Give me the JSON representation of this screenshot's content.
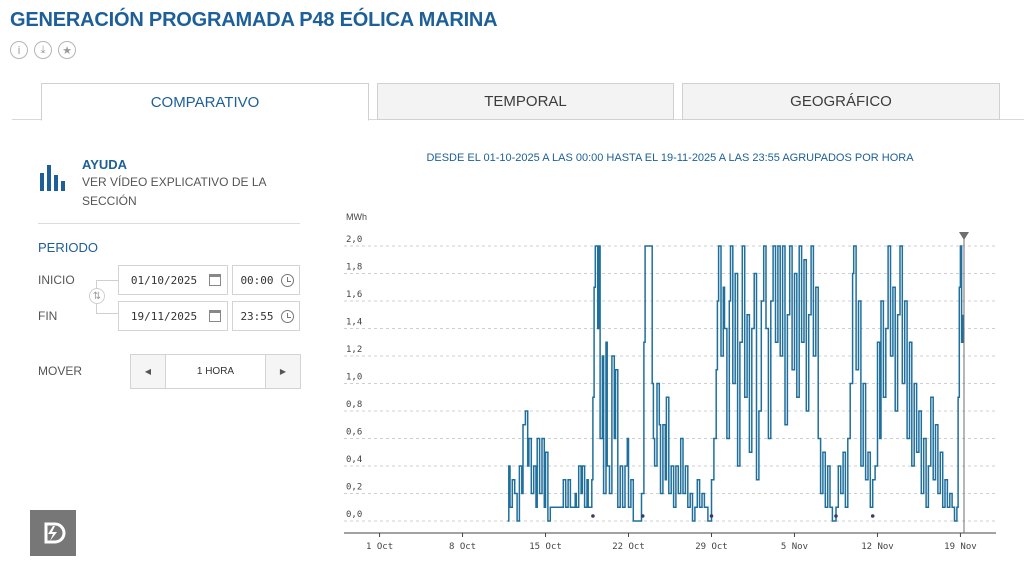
{
  "page": {
    "title": "GENERACIÓN PROGRAMADA P48 EÓLICA MARINA"
  },
  "icons": {
    "info": "info-icon",
    "download": "download-icon",
    "favorite": "star-icon"
  },
  "tabs": [
    {
      "label": "COMPARATIVO",
      "active": true
    },
    {
      "label": "TEMPORAL",
      "active": false
    },
    {
      "label": "GEOGRÁFICO",
      "active": false
    }
  ],
  "help": {
    "title": "AYUDA",
    "text": "VER VÍDEO EXPLICATIVO DE LA SECCIÓN"
  },
  "period": {
    "title": "PERIODO",
    "start_label": "INICIO",
    "start_date": "01/10/2025",
    "start_time": "00:00",
    "end_label": "FIN",
    "end_date": "19/11/2025",
    "end_time": "23:55"
  },
  "mover": {
    "label": "MOVER",
    "value": "1 HORA",
    "prev": "◀",
    "next": "▶"
  },
  "colors": {
    "brand": "#1d5f98",
    "series": "#1f6f9c"
  },
  "chart_data": {
    "type": "line",
    "subtitle": "DESDE EL 01-10-2025 A LAS 00:00 HASTA EL 19-11-2025 A LAS 23:55 AGRUPADOS POR HORA",
    "ylabel": "MWh",
    "ylim": [
      0,
      2.0
    ],
    "yticks": [
      "0,0",
      "0,2",
      "0,4",
      "0,6",
      "0,8",
      "1,0",
      "1,2",
      "1,4",
      "1,6",
      "1,8",
      "2,0"
    ],
    "xlim_days": [
      -3,
      52
    ],
    "xticks": [
      {
        "day": 0,
        "label": "1 Oct"
      },
      {
        "day": 7,
        "label": "8 Oct"
      },
      {
        "day": 14,
        "label": "15 Oct"
      },
      {
        "day": 21,
        "label": "22 Oct"
      },
      {
        "day": 28,
        "label": "29 Oct"
      },
      {
        "day": 35,
        "label": "5 Nov"
      },
      {
        "day": 42,
        "label": "12 Nov"
      },
      {
        "day": 49,
        "label": "19 Nov"
      }
    ],
    "grid": true,
    "cursor_day": 49.3,
    "zero_markers_days": [
      18.0,
      22.2,
      28.0,
      38.5,
      41.6
    ],
    "series": [
      {
        "values": [
          [
            10.8,
            0.0
          ],
          [
            10.9,
            0.4
          ],
          [
            11.0,
            0.1
          ],
          [
            11.2,
            0.3
          ],
          [
            11.4,
            0.2
          ],
          [
            11.6,
            0.0
          ],
          [
            11.8,
            0.4
          ],
          [
            12.0,
            0.2
          ],
          [
            12.1,
            0.7
          ],
          [
            12.3,
            0.8
          ],
          [
            12.5,
            0.4
          ],
          [
            12.6,
            0.6
          ],
          [
            12.8,
            0.2
          ],
          [
            13.0,
            0.4
          ],
          [
            13.2,
            0.1
          ],
          [
            13.3,
            0.6
          ],
          [
            13.5,
            0.2
          ],
          [
            13.7,
            0.6
          ],
          [
            13.9,
            0.1
          ],
          [
            14.0,
            0.5
          ],
          [
            14.2,
            0.0
          ],
          [
            14.4,
            0.1
          ],
          [
            15.4,
            0.1
          ],
          [
            15.5,
            0.3
          ],
          [
            15.7,
            0.1
          ],
          [
            15.9,
            0.3
          ],
          [
            16.1,
            0.1
          ],
          [
            16.3,
            0.1
          ],
          [
            16.5,
            0.2
          ],
          [
            16.6,
            0.1
          ],
          [
            16.8,
            0.4
          ],
          [
            17.0,
            0.2
          ],
          [
            17.1,
            0.4
          ],
          [
            17.3,
            0.1
          ],
          [
            17.5,
            0.3
          ],
          [
            17.6,
            0.1
          ],
          [
            17.9,
            0.3
          ],
          [
            18.0,
            0.9
          ],
          [
            18.1,
            1.7
          ],
          [
            18.2,
            2.0
          ],
          [
            18.4,
            1.4
          ],
          [
            18.5,
            2.0
          ],
          [
            18.6,
            0.6
          ],
          [
            18.8,
            1.2
          ],
          [
            18.9,
            0.2
          ],
          [
            19.1,
            1.3
          ],
          [
            19.2,
            0.4
          ],
          [
            19.4,
            0.2
          ],
          [
            19.6,
            1.2
          ],
          [
            19.8,
            0.6
          ],
          [
            19.9,
            1.1
          ],
          [
            20.1,
            0.1
          ],
          [
            20.3,
            0.4
          ],
          [
            20.5,
            0.1
          ],
          [
            20.7,
            0.4
          ],
          [
            20.9,
            0.6
          ],
          [
            21.0,
            0.1
          ],
          [
            21.2,
            0.3
          ],
          [
            21.4,
            0.0
          ],
          [
            22.0,
            0.0
          ],
          [
            22.1,
            0.2
          ],
          [
            22.3,
            1.3
          ],
          [
            22.4,
            2.0
          ],
          [
            22.7,
            2.0
          ],
          [
            22.9,
            2.0
          ],
          [
            23.0,
            1.0
          ],
          [
            23.1,
            0.6
          ],
          [
            23.2,
            0.4
          ],
          [
            23.4,
            1.0
          ],
          [
            23.6,
            0.7
          ],
          [
            23.7,
            0.2
          ],
          [
            23.9,
            0.7
          ],
          [
            24.1,
            0.3
          ],
          [
            24.2,
            0.9
          ],
          [
            24.4,
            0.2
          ],
          [
            24.6,
            0.4
          ],
          [
            24.8,
            0.1
          ],
          [
            25.0,
            0.4
          ],
          [
            25.2,
            0.2
          ],
          [
            25.4,
            0.6
          ],
          [
            25.6,
            0.2
          ],
          [
            25.8,
            0.4
          ],
          [
            26.0,
            0.1
          ],
          [
            26.2,
            0.2
          ],
          [
            26.4,
            0.0
          ],
          [
            26.6,
            0.1
          ],
          [
            26.8,
            0.3
          ],
          [
            27.0,
            0.1
          ],
          [
            27.2,
            0.2
          ],
          [
            27.4,
            0.1
          ],
          [
            27.7,
            0.0
          ],
          [
            28.0,
            0.3
          ],
          [
            28.2,
            0.6
          ],
          [
            28.4,
            1.1
          ],
          [
            28.5,
            1.6
          ],
          [
            28.6,
            2.0
          ],
          [
            28.8,
            1.2
          ],
          [
            29.0,
            1.7
          ],
          [
            29.1,
            1.4
          ],
          [
            29.3,
            0.6
          ],
          [
            29.5,
            1.6
          ],
          [
            29.6,
            2.0
          ],
          [
            29.8,
            1.0
          ],
          [
            30.0,
            1.8
          ],
          [
            30.2,
            0.4
          ],
          [
            30.4,
            1.3
          ],
          [
            30.6,
            2.0
          ],
          [
            30.8,
            0.9
          ],
          [
            31.0,
            1.5
          ],
          [
            31.2,
            0.5
          ],
          [
            31.4,
            1.4
          ],
          [
            31.6,
            1.8
          ],
          [
            31.8,
            0.3
          ],
          [
            32.0,
            0.8
          ],
          [
            32.2,
            1.6
          ],
          [
            32.4,
            2.0
          ],
          [
            32.6,
            1.4
          ],
          [
            32.8,
            0.6
          ],
          [
            33.0,
            1.6
          ],
          [
            33.2,
            2.0
          ],
          [
            33.4,
            1.3
          ],
          [
            33.6,
            2.0
          ],
          [
            33.8,
            1.2
          ],
          [
            34.0,
            2.0
          ],
          [
            34.2,
            0.7
          ],
          [
            34.4,
            1.5
          ],
          [
            34.6,
            2.0
          ],
          [
            34.8,
            1.1
          ],
          [
            35.0,
            1.8
          ],
          [
            35.2,
            0.9
          ],
          [
            35.4,
            2.0
          ],
          [
            35.6,
            1.3
          ],
          [
            35.8,
            1.9
          ],
          [
            36.0,
            0.8
          ],
          [
            36.2,
            1.5
          ],
          [
            36.4,
            2.0
          ],
          [
            36.6,
            1.2
          ],
          [
            36.8,
            1.7
          ],
          [
            37.0,
            0.6
          ],
          [
            37.2,
            0.2
          ],
          [
            37.4,
            0.5
          ],
          [
            37.6,
            0.1
          ],
          [
            37.8,
            0.4
          ],
          [
            38.0,
            0.1
          ],
          [
            38.2,
            0.0
          ],
          [
            38.5,
            0.1
          ],
          [
            38.7,
            0.4
          ],
          [
            38.9,
            0.2
          ],
          [
            39.1,
            0.5
          ],
          [
            39.3,
            0.1
          ],
          [
            39.5,
            0.6
          ],
          [
            39.7,
            1.0
          ],
          [
            39.9,
            1.8
          ],
          [
            40.0,
            2.0
          ],
          [
            40.2,
            1.1
          ],
          [
            40.4,
            1.6
          ],
          [
            40.6,
            0.4
          ],
          [
            40.8,
            1.0
          ],
          [
            41.0,
            0.3
          ],
          [
            41.2,
            0.5
          ],
          [
            41.4,
            0.1
          ],
          [
            41.6,
            0.3
          ],
          [
            41.8,
            0.4
          ],
          [
            42.0,
            1.3
          ],
          [
            42.2,
            0.6
          ],
          [
            42.3,
            1.6
          ],
          [
            42.5,
            0.9
          ],
          [
            42.7,
            1.4
          ],
          [
            42.9,
            2.0
          ],
          [
            43.1,
            1.2
          ],
          [
            43.3,
            1.7
          ],
          [
            43.5,
            0.8
          ],
          [
            43.7,
            1.5
          ],
          [
            43.9,
            2.0
          ],
          [
            44.1,
            1.0
          ],
          [
            44.3,
            1.6
          ],
          [
            44.5,
            0.6
          ],
          [
            44.7,
            1.3
          ],
          [
            44.9,
            0.4
          ],
          [
            45.1,
            1.0
          ],
          [
            45.3,
            0.5
          ],
          [
            45.5,
            0.8
          ],
          [
            45.7,
            0.2
          ],
          [
            45.9,
            0.6
          ],
          [
            46.1,
            0.1
          ],
          [
            46.3,
            0.4
          ],
          [
            46.5,
            0.9
          ],
          [
            46.7,
            0.3
          ],
          [
            46.9,
            0.7
          ],
          [
            47.1,
            0.2
          ],
          [
            47.3,
            0.5
          ],
          [
            47.5,
            0.1
          ],
          [
            47.7,
            0.3
          ],
          [
            47.9,
            0.1
          ],
          [
            48.1,
            0.2
          ],
          [
            48.3,
            0.1
          ],
          [
            48.5,
            0.0
          ],
          [
            48.7,
            0.1
          ],
          [
            48.8,
            0.9
          ],
          [
            48.9,
            1.7
          ],
          [
            49.0,
            2.0
          ],
          [
            49.1,
            1.3
          ],
          [
            49.2,
            1.5
          ]
        ]
      }
    ]
  }
}
